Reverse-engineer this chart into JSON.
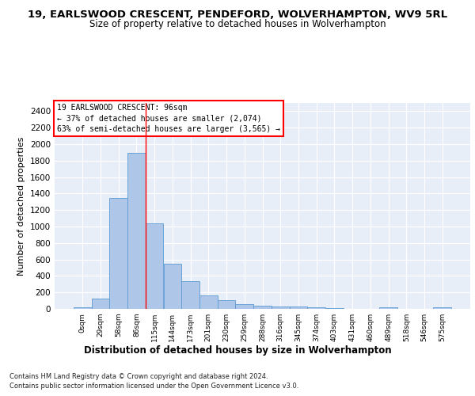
{
  "title1": "19, EARLSWOOD CRESCENT, PENDEFORD, WOLVERHAMPTON, WV9 5RL",
  "title2": "Size of property relative to detached houses in Wolverhampton",
  "xlabel": "Distribution of detached houses by size in Wolverhampton",
  "ylabel": "Number of detached properties",
  "footer1": "Contains HM Land Registry data © Crown copyright and database right 2024.",
  "footer2": "Contains public sector information licensed under the Open Government Licence v3.0.",
  "annotation_title": "19 EARLSWOOD CRESCENT: 96sqm",
  "annotation_line1": "← 37% of detached houses are smaller (2,074)",
  "annotation_line2": "63% of semi-detached houses are larger (3,565) →",
  "bar_color": "#aec6e8",
  "bar_edge_color": "#5b9bd5",
  "vline_color": "red",
  "vline_x": 3.5,
  "categories": [
    "0sqm",
    "29sqm",
    "58sqm",
    "86sqm",
    "115sqm",
    "144sqm",
    "173sqm",
    "201sqm",
    "230sqm",
    "259sqm",
    "288sqm",
    "316sqm",
    "345sqm",
    "374sqm",
    "403sqm",
    "431sqm",
    "460sqm",
    "489sqm",
    "518sqm",
    "546sqm",
    "575sqm"
  ],
  "values": [
    15,
    125,
    1350,
    1890,
    1040,
    545,
    335,
    160,
    110,
    60,
    38,
    28,
    25,
    18,
    10,
    0,
    0,
    20,
    0,
    0,
    15
  ],
  "ylim": [
    0,
    2500
  ],
  "yticks": [
    0,
    200,
    400,
    600,
    800,
    1000,
    1200,
    1400,
    1600,
    1800,
    2000,
    2200,
    2400
  ],
  "bg_color": "#e8eef8",
  "grid_color": "white",
  "title1_fontsize": 9.5,
  "title2_fontsize": 8.5,
  "xlabel_fontsize": 8.5,
  "ylabel_fontsize": 8,
  "footer_fontsize": 6.0
}
